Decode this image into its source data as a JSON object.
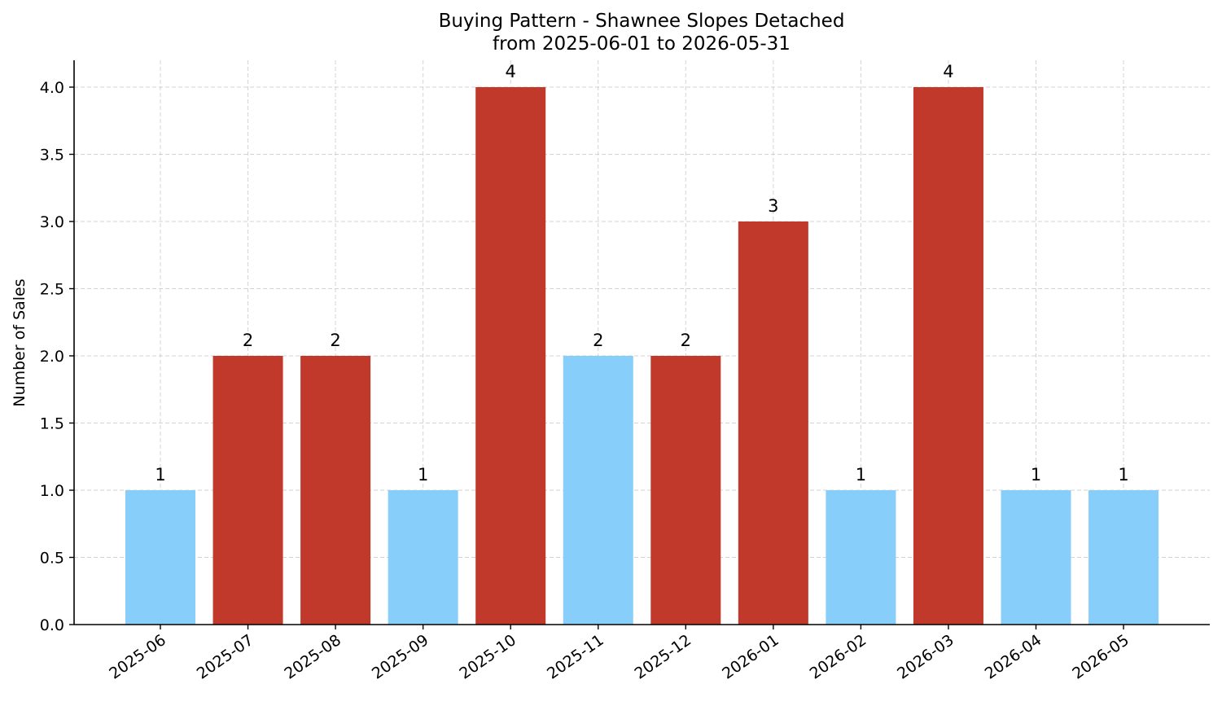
{
  "chart_data": {
    "type": "bar",
    "title": "Buying Pattern - Shawnee Slopes Detached",
    "subtitle": "from 2025-06-01 to 2026-05-31",
    "xlabel": "",
    "ylabel": "Number of Sales",
    "categories": [
      "2025-06",
      "2025-07",
      "2025-08",
      "2025-09",
      "2025-10",
      "2025-11",
      "2025-12",
      "2026-01",
      "2026-02",
      "2026-03",
      "2026-04",
      "2026-05"
    ],
    "values": [
      1,
      2,
      2,
      1,
      4,
      2,
      2,
      3,
      1,
      4,
      1,
      1
    ],
    "bar_colors": [
      "#87CEFA",
      "#C0392B",
      "#C0392B",
      "#87CEFA",
      "#C0392B",
      "#87CEFA",
      "#C0392B",
      "#C0392B",
      "#87CEFA",
      "#C0392B",
      "#87CEFA",
      "#87CEFA"
    ],
    "ylim": [
      0,
      4.2
    ],
    "yticks": [
      "0.0",
      "0.5",
      "1.0",
      "1.5",
      "2.0",
      "2.5",
      "3.0",
      "3.5",
      "4.0"
    ],
    "grid": true,
    "legend": "none"
  }
}
